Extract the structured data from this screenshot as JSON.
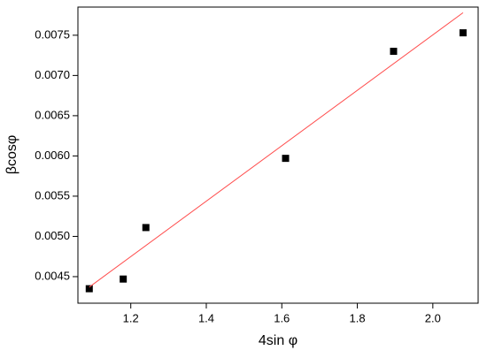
{
  "chart_data": {
    "type": "scatter",
    "xlabel": "4sin φ",
    "ylabel": "βcosφ",
    "series": [
      {
        "mode": "markers",
        "color": "#000000",
        "x": [
          1.09,
          1.18,
          1.24,
          1.61,
          1.896,
          2.08
        ],
        "values": [
          0.00435,
          0.00447,
          0.00511,
          0.00597,
          0.0073,
          0.00753
        ]
      },
      {
        "mode": "lines",
        "color": "#ff4d4d",
        "x": [
          1.09,
          2.08
        ],
        "values": [
          0.00437,
          0.00778
        ]
      }
    ],
    "xlim": [
      1.06,
      2.12
    ],
    "ylim": [
      0.00417,
      0.00785
    ],
    "xticks": [
      1.2,
      1.4,
      1.6,
      1.8,
      {
        "value": 2,
        "label": "2.0"
      }
    ],
    "yticks": [
      0.0045,
      {
        "value": 0.005,
        "label": "0.0050"
      },
      0.0055,
      {
        "value": 0.006,
        "label": "0.0060"
      },
      0.0065,
      {
        "value": 0.007,
        "label": "0.0070"
      },
      0.0075
    ]
  }
}
